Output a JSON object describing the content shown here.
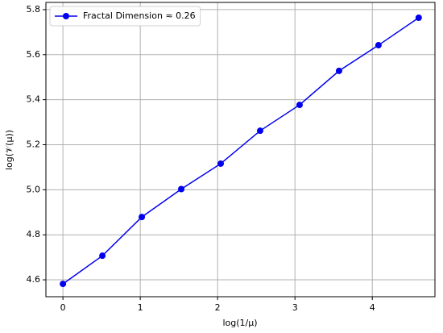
{
  "chart_data": {
    "type": "line",
    "xlabel": "log(1/μ)",
    "ylabel": "log(𝒱(μ))",
    "x": [
      0,
      0.51,
      1.02,
      1.53,
      2.04,
      2.55,
      3.06,
      3.57,
      4.08,
      4.6
    ],
    "series": [
      {
        "name": "Fractal Dimension ≈ 0.26",
        "color": "#0000ee",
        "values": [
          4.582,
          4.707,
          4.879,
          5.003,
          5.116,
          5.262,
          5.377,
          5.528,
          5.642,
          5.764
        ]
      }
    ],
    "xlim": [
      -0.22,
      4.81
    ],
    "ylim": [
      4.525,
      5.832
    ],
    "xticks": [
      0,
      1,
      2,
      3,
      4
    ],
    "yticks": [
      4.6,
      4.8,
      {
        "value": 5,
        "label": "5.0"
      },
      5.2,
      5.4,
      5.6,
      5.8
    ],
    "grid": true,
    "legend": "upper left"
  }
}
